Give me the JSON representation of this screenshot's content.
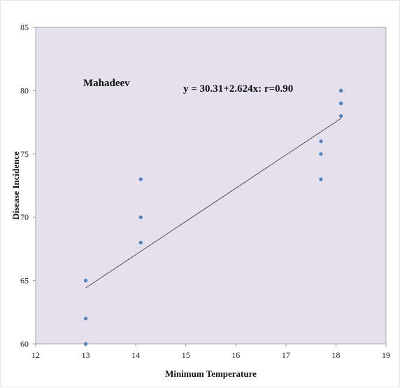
{
  "chart_data": {
    "type": "scatter",
    "title": "",
    "xlabel": "Minimum Temperature",
    "ylabel": "Disease Incidence",
    "xlim": [
      12,
      19
    ],
    "ylim": [
      60,
      85
    ],
    "xticks": [
      "12",
      "13",
      "14",
      "15",
      "16",
      "17",
      "18",
      "19"
    ],
    "yticks": [
      "60",
      "65",
      "70",
      "75",
      "80",
      "85"
    ],
    "grid": false,
    "plot_background": "#e6e0ec",
    "point_color": "#4f81bd",
    "line_color": "#404040",
    "series": [
      {
        "points": [
          {
            "x": 13.0,
            "y": 60
          },
          {
            "x": 13.0,
            "y": 62
          },
          {
            "x": 13.0,
            "y": 65
          },
          {
            "x": 14.1,
            "y": 68
          },
          {
            "x": 14.1,
            "y": 70
          },
          {
            "x": 14.1,
            "y": 73
          },
          {
            "x": 17.7,
            "y": 73
          },
          {
            "x": 17.7,
            "y": 75
          },
          {
            "x": 17.7,
            "y": 76
          },
          {
            "x": 18.1,
            "y": 78
          },
          {
            "x": 18.1,
            "y": 79
          },
          {
            "x": 18.1,
            "y": 80
          }
        ]
      }
    ],
    "trendline": {
      "label": "y = 30.31+2.624x:  r=0.90",
      "intercept": 30.31,
      "slope": 2.624,
      "x_range": [
        13.0,
        18.1
      ]
    },
    "annotations": [
      {
        "text": "Mahadeev"
      },
      {
        "text": "y = 30.31+2.624x:  r=0.90"
      }
    ]
  }
}
